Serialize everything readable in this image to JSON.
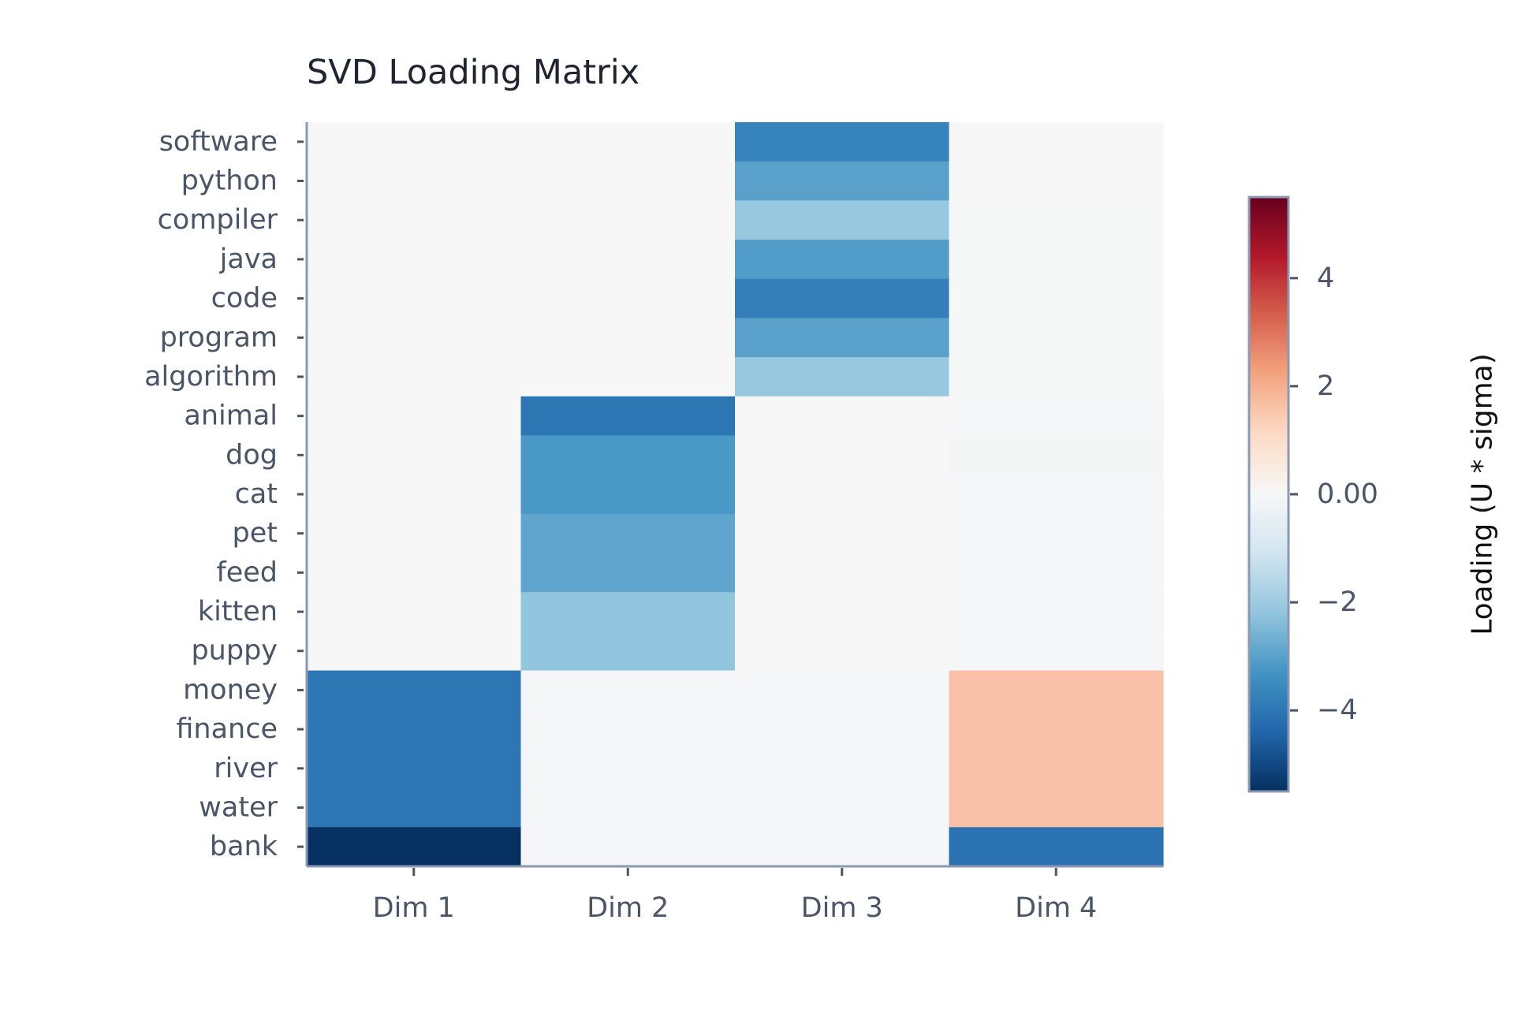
{
  "chart_data": {
    "type": "heatmap",
    "title": "SVD Loading Matrix",
    "rows": [
      "software",
      "python",
      "compiler",
      "java",
      "code",
      "program",
      "algorithm",
      "animal",
      "dog",
      "cat",
      "pet",
      "feed",
      "kitten",
      "puppy",
      "money",
      "finance",
      "river",
      "water",
      "bank"
    ],
    "columns": [
      "Dim 1",
      "Dim 2",
      "Dim 3",
      "Dim 4"
    ],
    "values": [
      [
        0.0,
        0.0,
        -3.7,
        0.0
      ],
      [
        0.0,
        0.0,
        -3.0,
        0.0
      ],
      [
        0.0,
        0.0,
        -2.1,
        -0.02
      ],
      [
        0.0,
        0.0,
        -3.1,
        -0.02
      ],
      [
        0.0,
        0.0,
        -3.8,
        -0.02
      ],
      [
        0.0,
        0.0,
        -3.0,
        -0.02
      ],
      [
        0.0,
        0.0,
        -2.1,
        -0.02
      ],
      [
        0.0,
        -4.0,
        0.0,
        -0.05
      ],
      [
        0.0,
        -3.2,
        0.0,
        -0.08
      ],
      [
        0.0,
        -3.2,
        0.0,
        -0.05
      ],
      [
        0.0,
        -2.9,
        0.0,
        -0.05
      ],
      [
        0.0,
        -2.9,
        0.0,
        -0.05
      ],
      [
        0.0,
        -2.2,
        0.0,
        -0.05
      ],
      [
        0.0,
        -2.2,
        0.0,
        -0.05
      ],
      [
        -4.0,
        -0.05,
        -0.05,
        1.6
      ],
      [
        -4.0,
        -0.05,
        -0.05,
        1.6
      ],
      [
        -4.0,
        -0.05,
        -0.05,
        1.6
      ],
      [
        -4.0,
        -0.05,
        -0.05,
        1.6
      ],
      [
        -5.5,
        -0.05,
        -0.05,
        -4.1
      ]
    ],
    "colorbar": {
      "label": "Loading (U * sigma)",
      "range": [
        -5.5,
        5.5
      ],
      "ticks": [
        4,
        2,
        0,
        -2,
        -4
      ],
      "tick_labels": [
        "4",
        "2",
        "0.00",
        "−2",
        "−4"
      ],
      "colormap": "RdBu_r",
      "colors": [
        "#053061",
        "#2166ac",
        "#4393c3",
        "#92c5de",
        "#d1e5f0",
        "#f7f7f7",
        "#fddbc7",
        "#f4a582",
        "#d6604d",
        "#b2182b",
        "#67001f"
      ]
    },
    "grid": false,
    "legend": "right"
  },
  "colors": {
    "axis": "#8a99b2",
    "tick_text": "#4b5568",
    "title_text": "#1f2430"
  }
}
